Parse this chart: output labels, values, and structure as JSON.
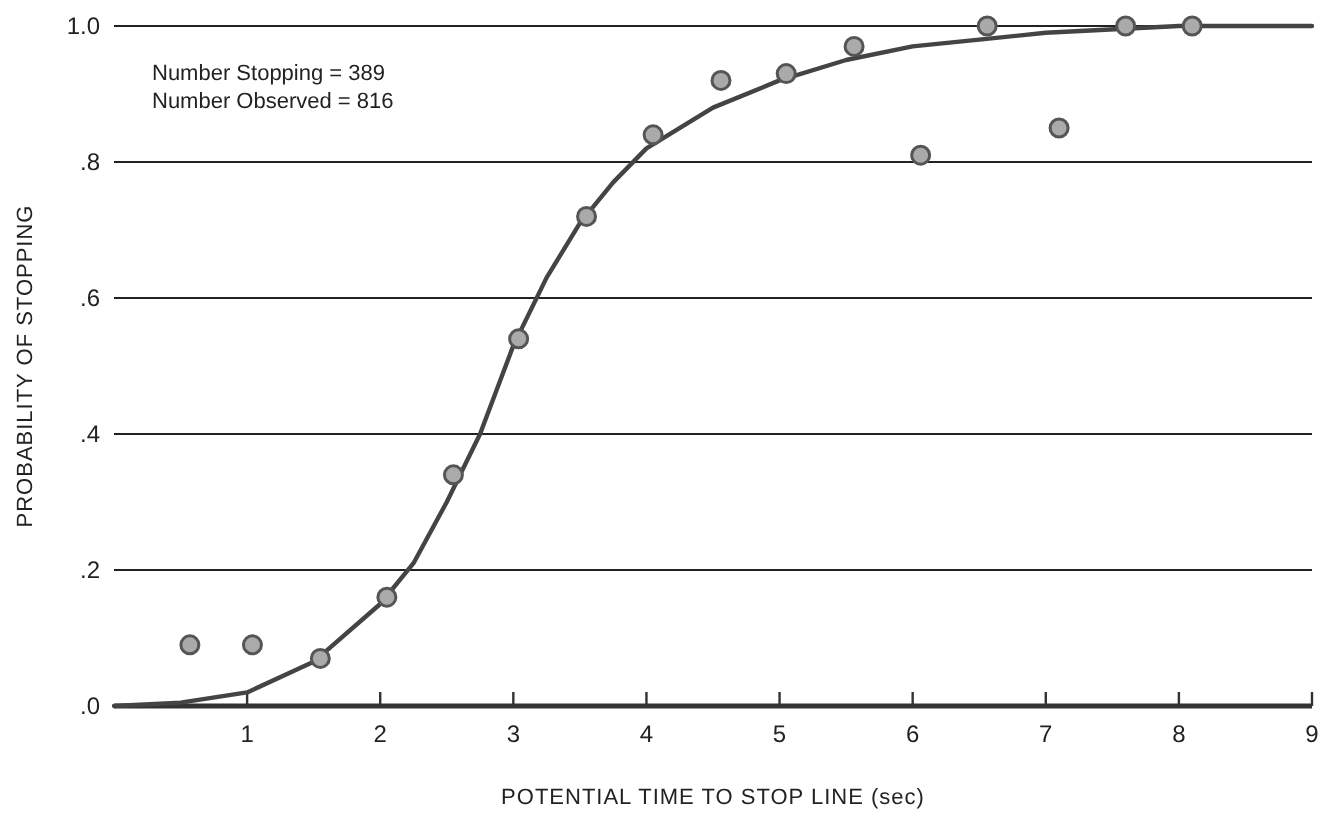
{
  "chart_data": {
    "type": "scatter",
    "xlabel": "POTENTIAL TIME TO STOP LINE (sec)",
    "ylabel": "PROBABILITY OF STOPPING",
    "annotations": [
      "Number Stopping = 389",
      "Number Observed = 816"
    ],
    "xlim": [
      0,
      9
    ],
    "xticks": [
      1,
      2,
      3,
      4,
      5,
      6,
      7,
      8,
      9
    ],
    "ylim": [
      0,
      1
    ],
    "yticks": [
      {
        "value": 0,
        "label": ".0"
      },
      {
        "value": 0.2,
        "label": ".2"
      },
      {
        "value": 0.4,
        "label": ".4"
      },
      {
        "value": 0.6,
        "label": ".6"
      },
      {
        "value": 0.8,
        "label": ".8"
      },
      {
        "value": 1,
        "label": "1.0"
      }
    ],
    "grid": "y",
    "marker": "circle",
    "series": [
      {
        "type": "line",
        "color": "#444444",
        "marker": "none",
        "line_style": "solid",
        "x": [
          0,
          0.5,
          1,
          1.5,
          2,
          2.25,
          2.5,
          2.75,
          3,
          3.25,
          3.5,
          3.75,
          4,
          4.5,
          5,
          5.5,
          6,
          6.5,
          7,
          8,
          9
        ],
        "values": [
          0,
          0.005,
          0.02,
          0.065,
          0.15,
          0.21,
          0.3,
          0.4,
          0.53,
          0.63,
          0.71,
          0.77,
          0.82,
          0.88,
          0.92,
          0.95,
          0.97,
          0.98,
          0.99,
          1,
          1
        ]
      },
      {
        "color": "#555555",
        "x": [
          0.57,
          1.04,
          1.55,
          2.05,
          2.55,
          3.04,
          3.55,
          4.05,
          4.56,
          5.05,
          5.56,
          6.06,
          6.56,
          7.1,
          7.6,
          8.1
        ],
        "values": [
          0.09,
          0.09,
          0.07,
          0.16,
          0.34,
          0.54,
          0.72,
          0.84,
          0.92,
          0.93,
          0.97,
          0.81,
          1,
          0.85,
          1,
          1
        ]
      }
    ]
  }
}
